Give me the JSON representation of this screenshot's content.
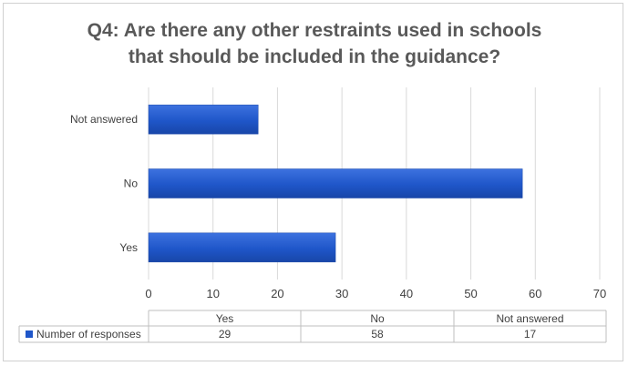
{
  "chart_data": {
    "type": "bar",
    "orientation": "horizontal",
    "title_lines": [
      "Q4: Are there any other restraints used in schools",
      "that should be included in the guidance?"
    ],
    "categories": [
      "Yes",
      "No",
      "Not answered"
    ],
    "series": [
      {
        "name": "Number of responses",
        "values": [
          29,
          58,
          17
        ],
        "color": "#1f56c9"
      }
    ],
    "xlim": [
      0,
      70
    ],
    "x_ticks": [
      "0",
      "10",
      "20",
      "30",
      "40",
      "50",
      "60",
      "70"
    ],
    "grid": "vertical",
    "legend": "data-table-below",
    "data_table": {
      "headers": [
        "Yes",
        "No",
        "Not answered"
      ],
      "values": [
        "29",
        "58",
        "17"
      ]
    }
  }
}
